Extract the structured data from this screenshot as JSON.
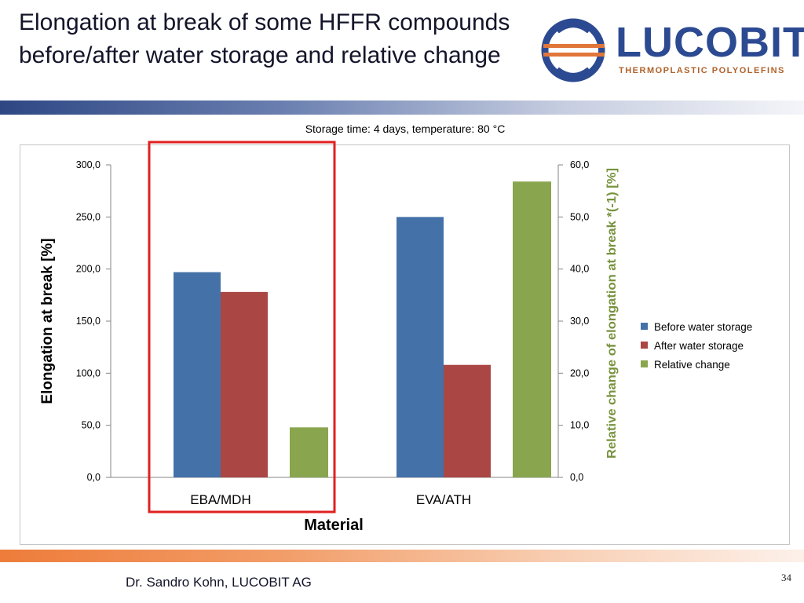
{
  "slide": {
    "title": "Elongation at break of some HFFR compounds before/after water storage and relative change",
    "subtitle": "Storage time: 4 days, temperature: 80 °C",
    "footer_author": "Dr. Sandro Kohn, LUCOBIT AG",
    "page_number": "34"
  },
  "logo": {
    "name": "LUCOBIT",
    "tagline": "THERMOPLASTIC POLYOLEFINS",
    "icon": "globe-logo-icon",
    "colors": {
      "ring": "#2c4a92",
      "stripes": "#e0763a"
    }
  },
  "highlight": {
    "color": "#e02020",
    "target": "EBA/MDH"
  },
  "chart_data": {
    "type": "bar",
    "categories": [
      "EBA/MDH",
      "EVA/ATH"
    ],
    "xlabel": "Material",
    "ylabel": "Elongation at break [%]",
    "ylabel_right": "Relative change of elongation at break *(-1) [%]",
    "ylim": [
      0,
      300
    ],
    "ylim_right": [
      0,
      60
    ],
    "yticks": [
      "0,0",
      "50,0",
      "100,0",
      "150,0",
      "200,0",
      "250,0",
      "300,0"
    ],
    "yticks_right": [
      "0,0",
      "10,0",
      "20,0",
      "30,0",
      "40,0",
      "50,0",
      "60,0"
    ],
    "grid": false,
    "legend_position": "right",
    "series": [
      {
        "name": "Before water storage",
        "axis": "left",
        "values": [
          197,
          250
        ],
        "color": "#4472a8"
      },
      {
        "name": "After water storage",
        "axis": "left",
        "values": [
          178,
          108
        ],
        "color": "#aa4644"
      },
      {
        "name": "Relative change",
        "axis": "right",
        "values": [
          9.6,
          56.8
        ],
        "color": "#89a54e"
      }
    ],
    "ylabel_right_color": "#77933c"
  }
}
